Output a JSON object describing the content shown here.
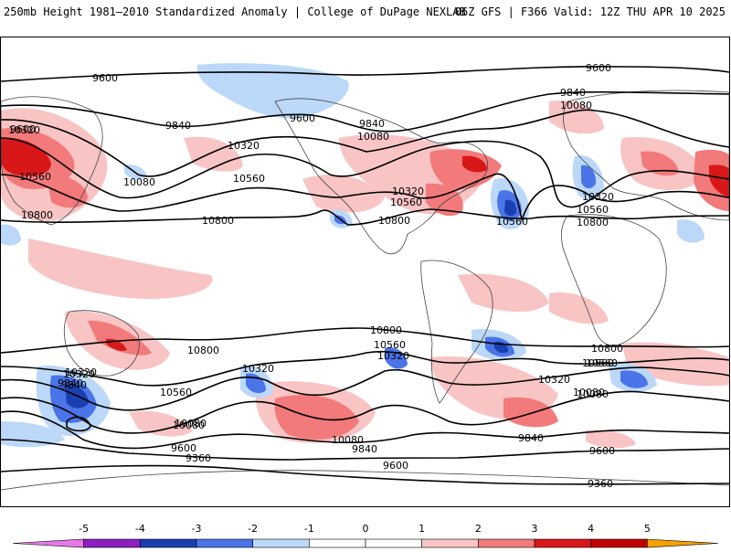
{
  "header": {
    "title": "250mb Height 1981–2010 Standardized Anomaly | College of DuPage NEXLAB",
    "run_info": "06Z GFS | F366 Valid: 12Z THU APR 10 2025"
  },
  "contour_labels": [
    "9600",
    "9600",
    "9600",
    "9840",
    "9840",
    "10080",
    "10080",
    "9600",
    "9840",
    "10320",
    "10320",
    "10560",
    "10560",
    "10800",
    "10800",
    "10080",
    "10320",
    "10560",
    "10560",
    "10800",
    "10320",
    "10560",
    "10800",
    "10320",
    "10560",
    "10800",
    "10800",
    "10560",
    "10320",
    "9840",
    "10320",
    "10080",
    "10080",
    "10560",
    "10080",
    "9840",
    "9600",
    "9360",
    "9600",
    "9840",
    "9600",
    "9360",
    "10320",
    "10560",
    "10800",
    "10080",
    "10320",
    "10080",
    "9840"
  ],
  "colorbar": {
    "tick_labels": [
      "-5",
      "-4",
      "-3",
      "-2",
      "-1",
      "0",
      "1",
      "2",
      "3",
      "4",
      "5"
    ],
    "colors": [
      "#e879e8",
      "#8b1fc0",
      "#1a3fb0",
      "#4a74e8",
      "#bcd8f8",
      "#ffffff",
      "#ffffff",
      "#f8c4c4",
      "#f27a7a",
      "#d81818",
      "#c00000",
      "#f4a000"
    ]
  }
}
